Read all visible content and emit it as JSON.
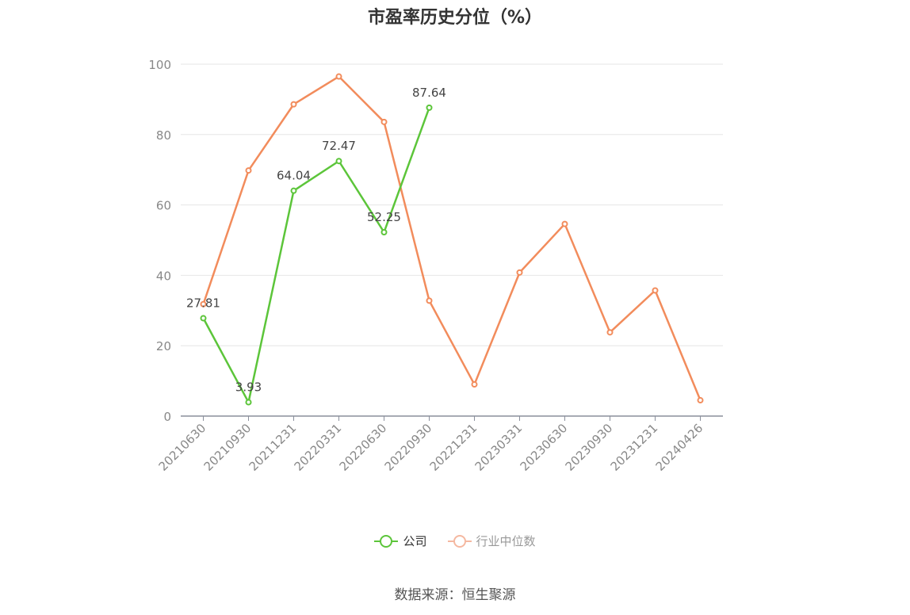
{
  "chart_data": {
    "type": "line",
    "title": "市盈率历史分位（%）",
    "xlabel": "",
    "ylabel": "",
    "categories": [
      "20210630",
      "20210930",
      "20211231",
      "20220331",
      "20220630",
      "20220930",
      "20221231",
      "20230331",
      "20230630",
      "20230930",
      "20231231",
      "20240426"
    ],
    "ylim": [
      0,
      100
    ],
    "yticks": [
      0,
      20,
      40,
      60,
      80,
      100
    ],
    "grid": true,
    "legend_position": "bottom",
    "series": [
      {
        "name": "公司",
        "color": "#5cc53a",
        "values": [
          27.81,
          3.93,
          64.04,
          72.47,
          52.25,
          87.64,
          null,
          null,
          null,
          null,
          null,
          null
        ],
        "labels": [
          "27.81",
          "3.93",
          "64.04",
          "72.47",
          "52.25",
          "87.64"
        ]
      },
      {
        "name": "行业中位数",
        "color": "#f28c5c",
        "legend_color": "#f5b8a0",
        "values": [
          31.8,
          69.8,
          88.6,
          96.5,
          83.6,
          32.8,
          9.0,
          40.8,
          54.6,
          23.8,
          35.7,
          4.5
        ]
      }
    ],
    "source": "数据来源：恒生聚源"
  }
}
